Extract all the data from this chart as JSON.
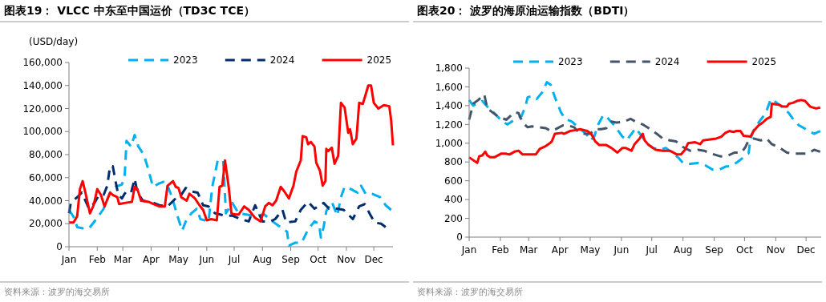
{
  "chart_data": [
    {
      "type": "line",
      "title": "图表19：  VLCC 中东至中国运价（TD3C TCE）",
      "ylabel": "(USD/day)",
      "annotations": [
        "资料来源：波罗的海交易所"
      ],
      "legend": "top",
      "grid": false,
      "xlim": [
        "--01-01",
        "--12-22"
      ],
      "xticks": [
        {
          "value": "--01-01",
          "label": "Jan"
        },
        {
          "value": "--02-01",
          "label": "Feb"
        },
        {
          "value": "--03-01",
          "label": "Mar"
        },
        {
          "value": "--04-01",
          "label": "Apr"
        },
        {
          "value": "--05-01",
          "label": "May"
        },
        {
          "value": "--06-01",
          "label": "Jun"
        },
        {
          "value": "--07-01",
          "label": "Jul"
        },
        {
          "value": "--08-01",
          "label": "Aug"
        },
        {
          "value": "--09-01",
          "label": "Sep"
        },
        {
          "value": "--10-01",
          "label": "Oct"
        },
        {
          "value": "--11-01",
          "label": "Nov"
        },
        {
          "value": "--12-01",
          "label": "Dec"
        }
      ],
      "ylim": [
        0,
        160000
      ],
      "yticks": [
        {
          "value": 0,
          "label": "0"
        },
        {
          "value": 20000,
          "label": "20,000"
        },
        {
          "value": 40000,
          "label": "40,000"
        },
        {
          "value": 60000,
          "label": "60,000"
        },
        {
          "value": 80000,
          "label": "80,000"
        },
        {
          "value": 100000,
          "label": "100,000"
        },
        {
          "value": 120000,
          "label": "120,000"
        },
        {
          "value": 140000,
          "label": "140,000"
        },
        {
          "value": 160000,
          "label": "160,000"
        }
      ],
      "series": [
        {
          "name": "2023",
          "color": "#00b0f0",
          "line_style": "dashed",
          "x": [
            "--01-01",
            "--01-06",
            "--01-10",
            "--01-16",
            "--01-23",
            "--01-31",
            "--02-08",
            "--02-15",
            "--02-21",
            "--02-28",
            "--03-03",
            "--03-04",
            "--03-05",
            "--03-10",
            "--03-14",
            "--03-18",
            "--03-24",
            "--03-29",
            "--04-03",
            "--04-10",
            "--04-17",
            "--04-24",
            "--04-29",
            "--05-05",
            "--05-09",
            "--05-15",
            "--05-21",
            "--05-25",
            "--06-03",
            "--06-07",
            "--06-13",
            "--06-19",
            "--06-22",
            "--06-29",
            "--07-06",
            "--07-14",
            "--07-22",
            "--08-03",
            "--08-12",
            "--08-21",
            "--08-28",
            "--08-30",
            "--09-06",
            "--09-13",
            "--09-20",
            "--09-27",
            "--10-02",
            "--10-04",
            "--10-07",
            "--10-10",
            "--10-16",
            "--10-22",
            "--10-26",
            "--10-30",
            "--11-06",
            "--11-13",
            "--11-17",
            "--11-22",
            "--11-29",
            "--12-08",
            "--12-14",
            "--12-20"
          ],
          "values": [
            32000,
            26000,
            17000,
            16000,
            16000,
            24000,
            33000,
            47000,
            52000,
            54000,
            61000,
            75000,
            92000,
            87000,
            97000,
            87000,
            80000,
            67000,
            52000,
            55000,
            57000,
            43000,
            29000,
            14000,
            22000,
            29000,
            33000,
            24000,
            22000,
            52000,
            75000,
            75000,
            29000,
            38000,
            29000,
            28000,
            27000,
            28000,
            22000,
            17000,
            13000,
            1000,
            3500,
            3500,
            15000,
            22000,
            20000,
            8000,
            17000,
            31000,
            39000,
            27000,
            43000,
            52000,
            50000,
            47000,
            53000,
            46000,
            46000,
            43000,
            36000,
            32000
          ]
        },
        {
          "name": "2024",
          "color": "#002d6e",
          "line_style": "dashed",
          "x": [
            "--01-01",
            "--01-03",
            "--01-10",
            "--01-15",
            "--01-19",
            "--01-23",
            "--01-29",
            "--02-03",
            "--02-08",
            "--02-12",
            "--02-15",
            "--02-18",
            "--02-21",
            "--02-24",
            "--02-28",
            "--03-03",
            "--03-05",
            "--03-10",
            "--03-14",
            "--03-17",
            "--03-23",
            "--03-29",
            "--04-04",
            "--04-10",
            "--04-19",
            "--04-28",
            "--05-04",
            "--05-09",
            "--05-15",
            "--05-22",
            "--05-28",
            "--06-03",
            "--06-10",
            "--06-21",
            "--06-29",
            "--07-08",
            "--07-17",
            "--07-24",
            "--08-01",
            "--08-10",
            "--08-15",
            "--08-23",
            "--08-27",
            "--09-06",
            "--09-12",
            "--09-20",
            "--09-27",
            "--10-03",
            "--10-07",
            "--10-13",
            "--10-22",
            "--10-29",
            "--11-08",
            "--11-15",
            "--11-21",
            "--11-27",
            "--12-02",
            "--12-09",
            "--12-14"
          ],
          "values": [
            29000,
            38000,
            43000,
            47000,
            40000,
            33000,
            38000,
            45000,
            45000,
            53000,
            70000,
            70000,
            57000,
            45000,
            42000,
            46000,
            48000,
            47000,
            59000,
            47000,
            40000,
            39000,
            38000,
            36000,
            35000,
            42000,
            45000,
            51000,
            48000,
            47000,
            36000,
            35000,
            29000,
            27000,
            27000,
            24000,
            22000,
            36000,
            22000,
            22000,
            24000,
            32000,
            21000,
            22000,
            32000,
            39000,
            33000,
            36000,
            38000,
            33000,
            33000,
            32000,
            24000,
            35000,
            37000,
            28000,
            21000,
            20000,
            17000
          ]
        },
        {
          "name": "2025",
          "color": "#ff0000",
          "line_style": "solid",
          "x": [
            "--01-01",
            "--01-06",
            "--01-10",
            "--01-13",
            "--01-16",
            "--01-19",
            "--01-24",
            "--01-28",
            "--02-01",
            "--02-05",
            "--02-09",
            "--02-15",
            "--02-18",
            "--02-23",
            "--02-25",
            "--03-03",
            "--03-11",
            "--03-14",
            "--03-17",
            "--03-21",
            "--03-29",
            "--04-04",
            "--04-10",
            "--04-16",
            "--04-19",
            "--04-25",
            "--04-28",
            "--05-01",
            "--05-04",
            "--05-10",
            "--05-13",
            "--05-19",
            "--05-24",
            "--05-28",
            "--06-01",
            "--06-06",
            "--06-12",
            "--06-15",
            "--06-18",
            "--06-21",
            "--06-25",
            "--06-28",
            "--07-02",
            "--07-06",
            "--07-12",
            "--07-17",
            "--07-24",
            "--07-30",
            "--08-04",
            "--08-08",
            "--08-12",
            "--08-16",
            "--08-21",
            "--08-25",
            "--08-30",
            "--09-04",
            "--09-07",
            "--09-12",
            "--09-14",
            "--09-18",
            "--09-20",
            "--09-23",
            "--09-27",
            "--09-29",
            "--10-03",
            "--10-06",
            "--10-09",
            "--10-10",
            "--10-12",
            "--10-16",
            "--10-19",
            "--10-23",
            "--10-26",
            "--10-30",
            "--11-03",
            "--11-05",
            "--11-08",
            "--11-12",
            "--11-15",
            "--11-19",
            "--11-22",
            "--11-25",
            "--11-28",
            "--12-01",
            "--12-06",
            "--12-12",
            "--12-18",
            "--12-20",
            "--12-22"
          ],
          "values": [
            21000,
            21000,
            26500,
            50000,
            57000,
            47000,
            29000,
            36000,
            50000,
            45000,
            35000,
            47000,
            45000,
            43000,
            37000,
            38000,
            39000,
            52000,
            50000,
            40000,
            39000,
            37000,
            35000,
            35000,
            53000,
            57000,
            52000,
            51000,
            43000,
            40000,
            46000,
            42000,
            36000,
            32000,
            23000,
            24000,
            23000,
            52000,
            53000,
            75000,
            52000,
            29000,
            28000,
            28000,
            35000,
            32000,
            25000,
            22000,
            35000,
            38000,
            36000,
            40000,
            52000,
            48000,
            42000,
            53000,
            65000,
            75000,
            96000,
            95000,
            89000,
            91000,
            87000,
            73000,
            66000,
            53000,
            57000,
            85000,
            83000,
            86000,
            72000,
            79000,
            125000,
            121000,
            99000,
            102000,
            89000,
            94000,
            125000,
            124000,
            132000,
            140000,
            140000,
            125000,
            120000,
            123000,
            122000,
            110000,
            88000
          ]
        }
      ]
    },
    {
      "type": "line",
      "title": "图表20：  波罗的海原油运输指数（BDTI）",
      "annotations": [
        "资料来源：波罗的海交易所"
      ],
      "legend": "top",
      "grid": false,
      "xlim": [
        "--01-01",
        "--12-16"
      ],
      "xticks": [
        {
          "value": "--01-01",
          "label": "Jan"
        },
        {
          "value": "--02-01",
          "label": "Feb"
        },
        {
          "value": "--03-01",
          "label": "Mar"
        },
        {
          "value": "--04-01",
          "label": "Apr"
        },
        {
          "value": "--05-01",
          "label": "May"
        },
        {
          "value": "--06-01",
          "label": "Jun"
        },
        {
          "value": "--07-01",
          "label": "Jul"
        },
        {
          "value": "--08-01",
          "label": "Aug"
        },
        {
          "value": "--09-01",
          "label": "Sep"
        },
        {
          "value": "--10-01",
          "label": "Oct"
        },
        {
          "value": "--11-01",
          "label": "Nov"
        },
        {
          "value": "--12-01",
          "label": "Dec"
        }
      ],
      "ylim": [
        0,
        1800
      ],
      "yticks": [
        {
          "value": 0,
          "label": "0"
        },
        {
          "value": 200,
          "label": "200"
        },
        {
          "value": 400,
          "label": "400"
        },
        {
          "value": 600,
          "label": "600"
        },
        {
          "value": 800,
          "label": "800"
        },
        {
          "value": 1000,
          "label": "1,000"
        },
        {
          "value": 1200,
          "label": "1,200"
        },
        {
          "value": 1400,
          "label": "1,400"
        },
        {
          "value": 1600,
          "label": "1,600"
        },
        {
          "value": 1800,
          "label": "1,800"
        }
      ],
      "series": [
        {
          "name": "2023",
          "color": "#00b0f0",
          "line_style": "dashed",
          "x": [
            "--01-01",
            "--01-05",
            "--01-10",
            "--01-14",
            "--01-19",
            "--01-26",
            "--02-03",
            "--02-08",
            "--02-15",
            "--02-22",
            "--02-26",
            "--02-28",
            "--03-04",
            "--03-09",
            "--03-15",
            "--03-19",
            "--03-23",
            "--03-27",
            "--04-02",
            "--04-06",
            "--04-13",
            "--04-20",
            "--04-27",
            "--05-01",
            "--05-05",
            "--05-09",
            "--05-14",
            "--05-19",
            "--05-25",
            "--06-02",
            "--06-06",
            "--06-11",
            "--06-15",
            "--06-20",
            "--06-26",
            "--07-02",
            "--07-09",
            "--07-15",
            "--07-21",
            "--07-27",
            "--08-01",
            "--08-08",
            "--08-16",
            "--08-24",
            "--08-30",
            "--09-06",
            "--09-12",
            "--09-18",
            "--09-24",
            "--09-30",
            "--10-05",
            "--10-07",
            "--10-11",
            "--10-17",
            "--10-22",
            "--10-27",
            "--11-02",
            "--11-09",
            "--11-14",
            "--11-18",
            "--11-24",
            "--11-29",
            "--12-04",
            "--12-09",
            "--12-15"
          ],
          "values": [
            1460,
            1400,
            1430,
            1450,
            1390,
            1320,
            1230,
            1200,
            1250,
            1290,
            1400,
            1490,
            1500,
            1470,
            1550,
            1650,
            1620,
            1490,
            1330,
            1260,
            1230,
            1160,
            1100,
            1030,
            1070,
            1200,
            1300,
            1260,
            1190,
            1070,
            1030,
            1100,
            1160,
            1090,
            1000,
            950,
            930,
            950,
            900,
            850,
            790,
            780,
            790,
            760,
            720,
            720,
            750,
            760,
            800,
            850,
            890,
            1050,
            1160,
            1250,
            1320,
            1470,
            1430,
            1370,
            1320,
            1260,
            1190,
            1160,
            1130,
            1100,
            1130
          ]
        },
        {
          "name": "2024",
          "color": "#44546a",
          "line_style": "dashed",
          "x": [
            "--01-01",
            "--01-05",
            "--01-10",
            "--01-16",
            "--01-19",
            "--01-24",
            "--01-30",
            "--02-07",
            "--02-15",
            "--02-19",
            "--02-23",
            "--02-28",
            "--03-04",
            "--03-11",
            "--03-18",
            "--03-23",
            "--03-28",
            "--04-04",
            "--04-09",
            "--04-15",
            "--04-20",
            "--04-25",
            "--05-01",
            "--05-06",
            "--05-12",
            "--05-17",
            "--05-22",
            "--05-27",
            "--06-04",
            "--06-10",
            "--06-15",
            "--06-22",
            "--06-28",
            "--07-06",
            "--07-12",
            "--07-19",
            "--07-25",
            "--08-01",
            "--08-08",
            "--08-16",
            "--08-22",
            "--08-29",
            "--09-07",
            "--09-15",
            "--09-21",
            "--09-28",
            "--10-02",
            "--10-05",
            "--10-10",
            "--10-17",
            "--10-23",
            "--10-28",
            "--11-05",
            "--11-12",
            "--11-18",
            "--11-26",
            "--12-03",
            "--12-09",
            "--12-15"
          ],
          "values": [
            1250,
            1420,
            1460,
            1520,
            1370,
            1330,
            1280,
            1250,
            1330,
            1320,
            1220,
            1170,
            1180,
            1170,
            1160,
            1130,
            1150,
            1190,
            1190,
            1170,
            1110,
            1100,
            1100,
            1150,
            1150,
            1160,
            1230,
            1220,
            1230,
            1260,
            1230,
            1200,
            1160,
            1100,
            1050,
            1030,
            1020,
            960,
            920,
            930,
            920,
            890,
            860,
            870,
            900,
            900,
            960,
            1030,
            1050,
            1030,
            1050,
            990,
            950,
            900,
            890,
            890,
            890,
            930,
            910
          ]
        },
        {
          "name": "2025",
          "color": "#ff0000",
          "line_style": "solid",
          "x": [
            "--01-01",
            "--01-05",
            "--01-09",
            "--01-11",
            "--01-14",
            "--01-17",
            "--01-19",
            "--01-22",
            "--01-26",
            "--02-02",
            "--02-06",
            "--02-10",
            "--02-15",
            "--02-19",
            "--02-23",
            "--02-28",
            "--03-08",
            "--03-12",
            "--03-18",
            "--03-22",
            "--03-24",
            "--03-27",
            "--04-03",
            "--04-05",
            "--04-11",
            "--04-17",
            "--04-21",
            "--04-28",
            "--05-02",
            "--05-06",
            "--05-10",
            "--05-17",
            "--05-22",
            "--05-28",
            "--06-02",
            "--06-05",
            "--06-11",
            "--06-14",
            "--06-19",
            "--06-22",
            "--06-24",
            "--06-28",
            "--07-05",
            "--07-12",
            "--07-19",
            "--07-26",
            "--07-30",
            "--08-03",
            "--08-06",
            "--08-13",
            "--08-18",
            "--08-21",
            "--08-28",
            "--09-03",
            "--09-08",
            "--09-12",
            "--09-16",
            "--09-20",
            "--09-23",
            "--09-27",
            "--09-30",
            "--10-07",
            "--10-10",
            "--10-15",
            "--10-19",
            "--10-23",
            "--10-27",
            "--10-28",
            "--11-04",
            "--11-08",
            "--11-12",
            "--11-14",
            "--11-18",
            "--11-22",
            "--11-26",
            "--11-30",
            "--12-05",
            "--12-11",
            "--12-15"
          ],
          "values": [
            850,
            820,
            790,
            860,
            870,
            910,
            870,
            850,
            850,
            890,
            890,
            880,
            910,
            920,
            880,
            880,
            880,
            940,
            970,
            1000,
            1020,
            1100,
            1110,
            1100,
            1130,
            1140,
            1150,
            1130,
            1100,
            1020,
            980,
            980,
            950,
            900,
            950,
            950,
            920,
            990,
            1050,
            1100,
            1030,
            980,
            930,
            920,
            920,
            880,
            880,
            930,
            1000,
            1010,
            990,
            1030,
            1040,
            1050,
            1070,
            1110,
            1130,
            1120,
            1130,
            1130,
            1080,
            1070,
            1130,
            1190,
            1220,
            1260,
            1280,
            1420,
            1410,
            1390,
            1390,
            1420,
            1430,
            1450,
            1460,
            1450,
            1390,
            1370,
            1380
          ]
        }
      ]
    }
  ]
}
